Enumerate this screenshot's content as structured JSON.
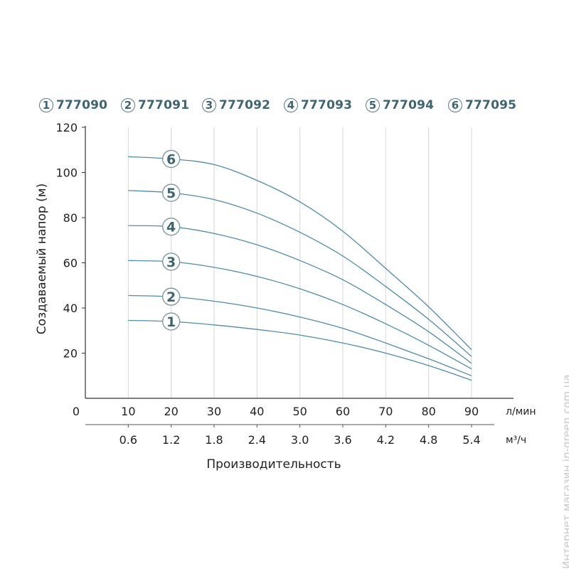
{
  "chart_data": {
    "type": "line",
    "ylabel": "Создаваемый напор (м)",
    "xlabel": "Производительность",
    "x_unit_primary": "л/мин",
    "x_unit_secondary": "м³/ч",
    "ylim": [
      0,
      120
    ],
    "xlim": [
      0,
      90
    ],
    "y_ticks": [
      "20",
      "40",
      "60",
      "80",
      "100",
      "120"
    ],
    "x_ticks_primary": [
      "0",
      "10",
      "20",
      "30",
      "40",
      "50",
      "60",
      "70",
      "80",
      "90"
    ],
    "x_ticks_secondary": [
      "0.6",
      "1.2",
      "1.8",
      "2.4",
      "3.0",
      "3.6",
      "4.2",
      "4.8",
      "5.4"
    ],
    "grid": "vertical",
    "legend_position": "top",
    "line_color": "#4f8ca8",
    "accent_color": "#3f6472",
    "x": [
      10,
      20,
      30,
      40,
      50,
      60,
      70,
      80,
      90
    ],
    "series": [
      {
        "name": "777090",
        "marker": "1",
        "values": [
          34.5,
          34,
          32.5,
          30.5,
          28,
          24.5,
          20,
          14.5,
          8
        ]
      },
      {
        "name": "777091",
        "marker": "2",
        "values": [
          45.5,
          45,
          43,
          40,
          36,
          31,
          24.5,
          17.5,
          10
        ]
      },
      {
        "name": "777092",
        "marker": "3",
        "values": [
          61,
          60.5,
          58,
          54,
          48.5,
          41.5,
          33,
          23.5,
          13
        ]
      },
      {
        "name": "777093",
        "marker": "4",
        "values": [
          76.5,
          76,
          73,
          68,
          61,
          52.5,
          41.5,
          29.5,
          15.5
        ]
      },
      {
        "name": "777094",
        "marker": "5",
        "values": [
          92,
          91,
          88,
          82,
          73.5,
          63,
          49.5,
          35,
          18.5
        ]
      },
      {
        "name": "777095",
        "marker": "6",
        "values": [
          107,
          106,
          103.5,
          96.5,
          87,
          74,
          57.5,
          40.5,
          21.5
        ]
      }
    ]
  },
  "legend": [
    {
      "num": "1",
      "code": "777090"
    },
    {
      "num": "2",
      "code": "777091"
    },
    {
      "num": "3",
      "code": "777092"
    },
    {
      "num": "4",
      "code": "777093"
    },
    {
      "num": "5",
      "code": "777094"
    },
    {
      "num": "6",
      "code": "777095"
    }
  ],
  "watermark": "Интернет магазин in-green.com.ua"
}
